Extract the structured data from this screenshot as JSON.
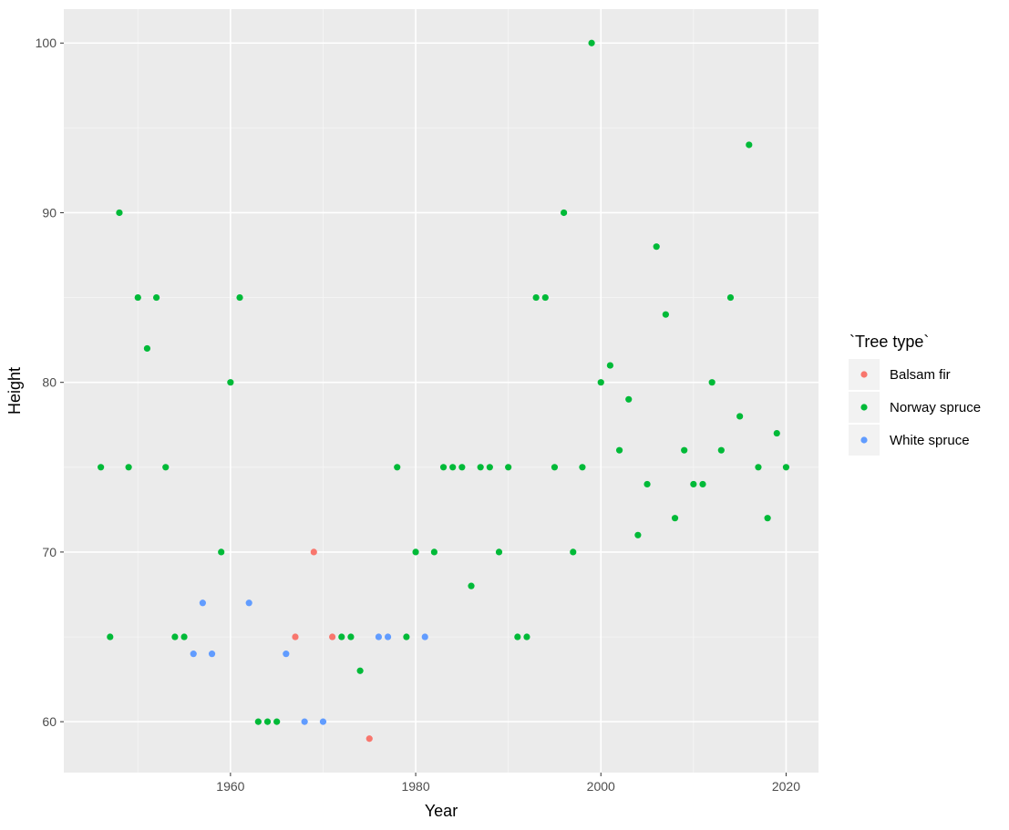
{
  "chart_data": {
    "type": "scatter",
    "xlabel": "Year",
    "ylabel": "Height",
    "xlim": [
      1942,
      2023.5
    ],
    "ylim": [
      57,
      102
    ],
    "x_ticks": [
      1960,
      1980,
      2000,
      2020
    ],
    "y_ticks": [
      60,
      70,
      80,
      90,
      100
    ],
    "grid": true,
    "legend_position": "right",
    "legend_title": "`Tree type`",
    "series": [
      {
        "name": "Balsam fir",
        "color": "#F8766D",
        "points": [
          [
            1967,
            65
          ],
          [
            1969,
            70
          ],
          [
            1971,
            65
          ],
          [
            1975,
            59
          ]
        ]
      },
      {
        "name": "Norway spruce",
        "color": "#00BA38",
        "points": [
          [
            1946,
            75
          ],
          [
            1947,
            65
          ],
          [
            1948,
            90
          ],
          [
            1949,
            75
          ],
          [
            1950,
            85
          ],
          [
            1951,
            82
          ],
          [
            1952,
            85
          ],
          [
            1953,
            75
          ],
          [
            1954,
            65
          ],
          [
            1955,
            65
          ],
          [
            1959,
            70
          ],
          [
            1960,
            80
          ],
          [
            1961,
            85
          ],
          [
            1963,
            60
          ],
          [
            1964,
            60
          ],
          [
            1965,
            60
          ],
          [
            1972,
            65
          ],
          [
            1973,
            65
          ],
          [
            1974,
            63
          ],
          [
            1978,
            75
          ],
          [
            1979,
            65
          ],
          [
            1980,
            70
          ],
          [
            1982,
            70
          ],
          [
            1983,
            75
          ],
          [
            1984,
            75
          ],
          [
            1985,
            75
          ],
          [
            1986,
            68
          ],
          [
            1987,
            75
          ],
          [
            1988,
            75
          ],
          [
            1989,
            70
          ],
          [
            1990,
            75
          ],
          [
            1991,
            65
          ],
          [
            1992,
            65
          ],
          [
            1993,
            85
          ],
          [
            1994,
            85
          ],
          [
            1995,
            75
          ],
          [
            1996,
            90
          ],
          [
            1997,
            70
          ],
          [
            1998,
            75
          ],
          [
            1999,
            100
          ],
          [
            2000,
            80
          ],
          [
            2001,
            81
          ],
          [
            2002,
            76
          ],
          [
            2003,
            79
          ],
          [
            2004,
            71
          ],
          [
            2005,
            74
          ],
          [
            2006,
            88
          ],
          [
            2007,
            84
          ],
          [
            2008,
            72
          ],
          [
            2009,
            76
          ],
          [
            2010,
            74
          ],
          [
            2011,
            74
          ],
          [
            2012,
            80
          ],
          [
            2013,
            76
          ],
          [
            2014,
            85
          ],
          [
            2015,
            78
          ],
          [
            2016,
            94
          ],
          [
            2017,
            75
          ],
          [
            2018,
            72
          ],
          [
            2019,
            77
          ],
          [
            2020,
            75
          ]
        ]
      },
      {
        "name": "White spruce",
        "color": "#619CFF",
        "points": [
          [
            1956,
            64
          ],
          [
            1957,
            67
          ],
          [
            1958,
            64
          ],
          [
            1962,
            67
          ],
          [
            1966,
            64
          ],
          [
            1968,
            60
          ],
          [
            1970,
            60
          ],
          [
            1976,
            65
          ],
          [
            1977,
            65
          ],
          [
            1981,
            65
          ]
        ]
      }
    ]
  }
}
